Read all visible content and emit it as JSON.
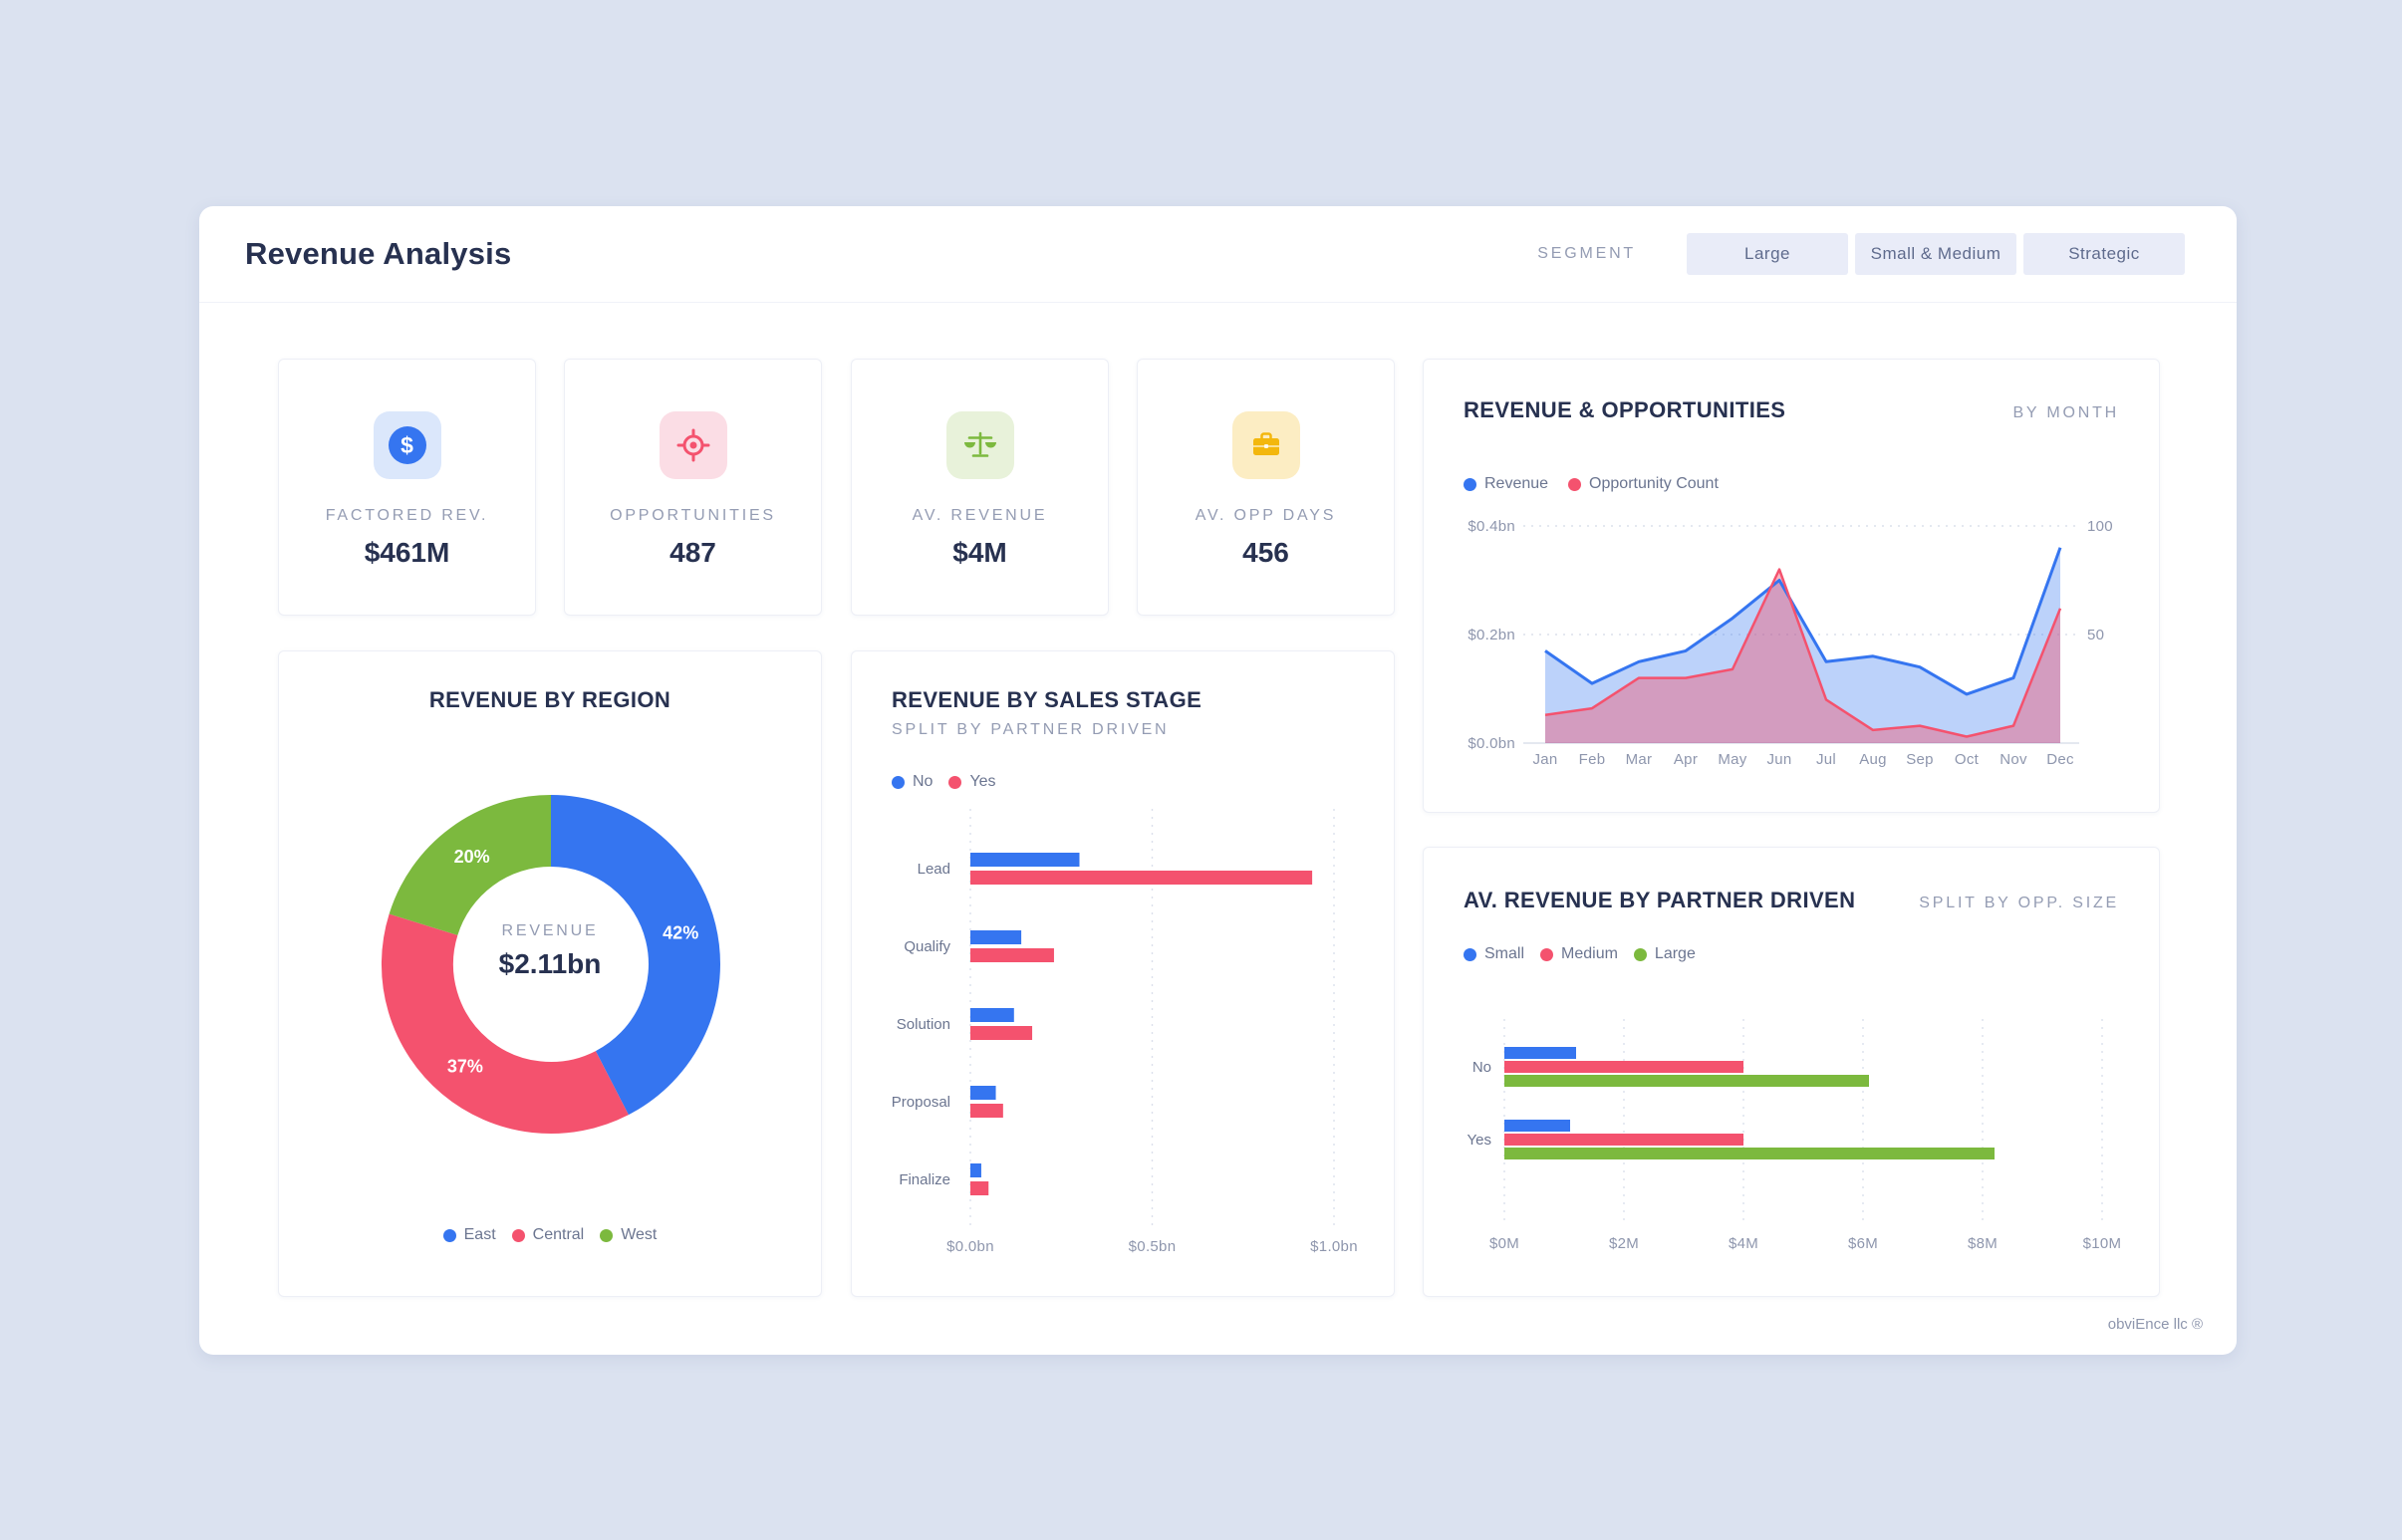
{
  "page": {
    "title": "Revenue Analysis",
    "footer": "obviEnce llc ®"
  },
  "segment": {
    "label": "SEGMENT",
    "options": [
      {
        "label": "Large"
      },
      {
        "label": "Small & Medium"
      },
      {
        "label": "Strategic"
      }
    ]
  },
  "kpis": [
    {
      "icon": "dollar-icon",
      "glyph": "$",
      "label": "FACTORED REV.",
      "value": "$461M",
      "color": "#3575f0",
      "bg": "#dbe7fb"
    },
    {
      "icon": "target-icon",
      "label": "OPPORTUNITIES",
      "value": "487",
      "color": "#f4526e",
      "bg": "#fbdde5"
    },
    {
      "icon": "scales-icon",
      "label": "AV. REVENUE",
      "value": "$4M",
      "color": "#7cb93e",
      "bg": "#e8f2da"
    },
    {
      "icon": "briefcase-icon",
      "label": "AV. OPP DAYS",
      "value": "456",
      "color": "#f3b70d",
      "bg": "#fcedc3"
    }
  ],
  "colors": {
    "blue": "#3575f0",
    "red": "#f4526e",
    "green": "#7cb93e",
    "yellow": "#f3b70d",
    "navy": "#273150",
    "muted": "#949cb3",
    "page_bg": "#dbe2f0",
    "panel_bg": "#ffffff"
  },
  "chart_data": [
    {
      "id": "revenue-and-opportunities",
      "type": "area",
      "title": "REVENUE & OPPORTUNITIES",
      "subtitle": "BY MONTH",
      "x": [
        "Jan",
        "Feb",
        "Mar",
        "Apr",
        "May",
        "Jun",
        "Jul",
        "Aug",
        "Sep",
        "Oct",
        "Nov",
        "Dec"
      ],
      "series": [
        {
          "name": "Revenue",
          "axis": "left",
          "color": "#3575f0",
          "values": [
            0.17,
            0.11,
            0.15,
            0.17,
            0.23,
            0.3,
            0.15,
            0.16,
            0.14,
            0.09,
            0.12,
            0.36
          ]
        },
        {
          "name": "Opportunity Count",
          "axis": "right",
          "color": "#f4526e",
          "values": [
            13,
            16,
            30,
            30,
            34,
            80,
            20,
            6,
            8,
            3,
            8,
            62
          ]
        }
      ],
      "left_axis": {
        "max": 0.4,
        "ticks": [
          {
            "label": "$0.0bn",
            "value": 0
          },
          {
            "label": "$0.2bn",
            "value": 0.2
          },
          {
            "label": "$0.4bn",
            "value": 0.4
          }
        ]
      },
      "right_axis": {
        "max": 100,
        "ticks": [
          {
            "label": "50",
            "value": 50
          },
          {
            "label": "100",
            "value": 100
          }
        ]
      },
      "grid": true,
      "legend_position": "top-left"
    },
    {
      "id": "revenue-by-region",
      "type": "pie",
      "title": "REVENUE BY REGION",
      "center_label": "REVENUE",
      "center_value": "$2.11bn",
      "slices": [
        {
          "label": "East",
          "pct": 42,
          "color": "#3575f0"
        },
        {
          "label": "Central",
          "pct": 37,
          "color": "#f4526e"
        },
        {
          "label": "West",
          "pct": 20,
          "color": "#7cb93e"
        }
      ],
      "legend_position": "bottom-center"
    },
    {
      "id": "revenue-by-sales-stage",
      "type": "bar",
      "orientation": "horizontal",
      "title": "REVENUE BY SALES STAGE",
      "subtitle": "SPLIT BY PARTNER DRIVEN",
      "categories": [
        "Lead",
        "Qualify",
        "Solution",
        "Proposal",
        "Finalize"
      ],
      "series": [
        {
          "name": "No",
          "color": "#3575f0",
          "values": [
            0.3,
            0.14,
            0.12,
            0.07,
            0.03
          ]
        },
        {
          "name": "Yes",
          "color": "#f4526e",
          "values": [
            0.94,
            0.23,
            0.17,
            0.09,
            0.05
          ]
        }
      ],
      "x_axis": {
        "max": 1.0,
        "unit": "$bn",
        "ticks": [
          {
            "label": "$0.0bn",
            "value": 0
          },
          {
            "label": "$0.5bn",
            "value": 0.5
          },
          {
            "label": "$1.0bn",
            "value": 1.0
          }
        ]
      },
      "grid": true,
      "legend_position": "top-left"
    },
    {
      "id": "av-revenue-by-partner-driven",
      "type": "bar",
      "orientation": "horizontal",
      "title": "AV. REVENUE BY PARTNER DRIVEN",
      "subtitle": "SPLIT BY OPP. SIZE",
      "categories": [
        "No",
        "Yes"
      ],
      "series": [
        {
          "name": "Small",
          "color": "#3575f0",
          "values": [
            1.2,
            1.1
          ]
        },
        {
          "name": "Medium",
          "color": "#f4526e",
          "values": [
            4.0,
            4.0
          ]
        },
        {
          "name": "Large",
          "color": "#7cb93e",
          "values": [
            6.1,
            8.2
          ]
        }
      ],
      "x_axis": {
        "max": 10,
        "unit": "$M",
        "ticks": [
          {
            "label": "$0M",
            "value": 0
          },
          {
            "label": "$2M",
            "value": 2
          },
          {
            "label": "$4M",
            "value": 4
          },
          {
            "label": "$6M",
            "value": 6
          },
          {
            "label": "$8M",
            "value": 8
          },
          {
            "label": "$10M",
            "value": 10
          }
        ]
      },
      "grid": true,
      "legend_position": "top-left"
    }
  ]
}
